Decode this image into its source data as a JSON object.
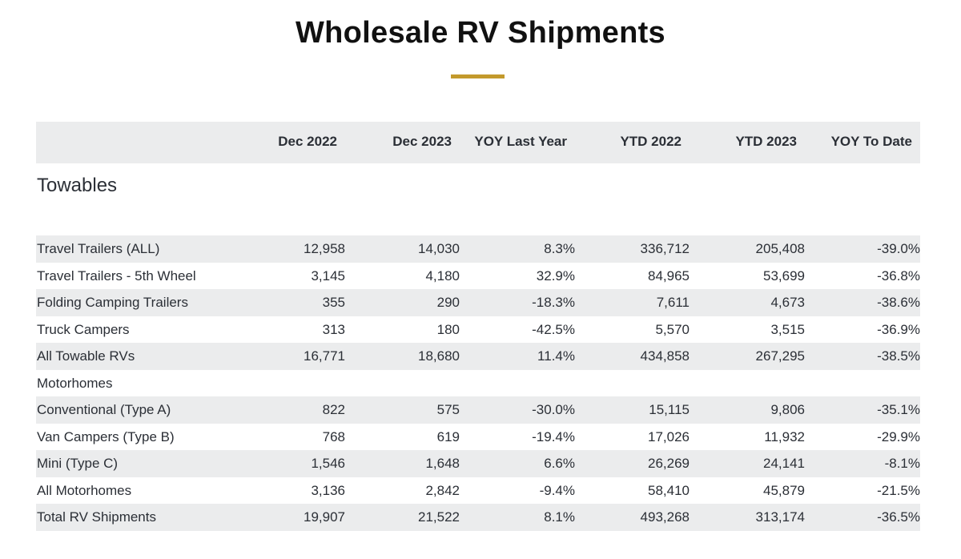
{
  "title": "Wholesale RV Shipments",
  "colors": {
    "accent": "#c39a2c",
    "row_shade": "#ebeced",
    "text": "#2b2f36"
  },
  "table": {
    "columns": [
      "Dec 2022",
      "Dec 2023",
      "YOY Last Year",
      "YTD 2022",
      "YTD 2023",
      "YOY To Date"
    ],
    "section": "Towables",
    "rows": [
      {
        "label": "Travel Trailers (ALL)",
        "values": [
          "12,958",
          "14,030",
          "8.3%",
          "336,712",
          "205,408",
          "-39.0%"
        ]
      },
      {
        "label": "Travel Trailers - 5th Wheel",
        "values": [
          "3,145",
          "4,180",
          "32.9%",
          "84,965",
          "53,699",
          "-36.8%"
        ]
      },
      {
        "label": "Folding Camping Trailers",
        "values": [
          "355",
          "290",
          "-18.3%",
          "7,611",
          "4,673",
          "-38.6%"
        ]
      },
      {
        "label": "Truck Campers",
        "values": [
          "313",
          "180",
          "-42.5%",
          "5,570",
          "3,515",
          "-36.9%"
        ]
      },
      {
        "label": "All Towable RVs",
        "values": [
          "16,771",
          "18,680",
          "11.4%",
          "434,858",
          "267,295",
          "-38.5%"
        ]
      },
      {
        "label": "Motorhomes",
        "values": [
          "",
          "",
          "",
          "",
          "",
          ""
        ]
      },
      {
        "label": "Conventional (Type A)",
        "values": [
          "822",
          "575",
          "-30.0%",
          "15,115",
          "9,806",
          "-35.1%"
        ]
      },
      {
        "label": "Van Campers (Type B)",
        "values": [
          "768",
          "619",
          "-19.4%",
          "17,026",
          "11,932",
          "-29.9%"
        ]
      },
      {
        "label": "Mini (Type C)",
        "values": [
          "1,546",
          "1,648",
          "6.6%",
          "26,269",
          "24,141",
          "-8.1%"
        ]
      },
      {
        "label": "All Motorhomes",
        "values": [
          "3,136",
          "2,842",
          "-9.4%",
          "58,410",
          "45,879",
          "-21.5%"
        ]
      },
      {
        "label": "Total RV Shipments",
        "values": [
          "19,907",
          "21,522",
          "8.1%",
          "493,268",
          "313,174",
          "-36.5%"
        ]
      }
    ]
  }
}
